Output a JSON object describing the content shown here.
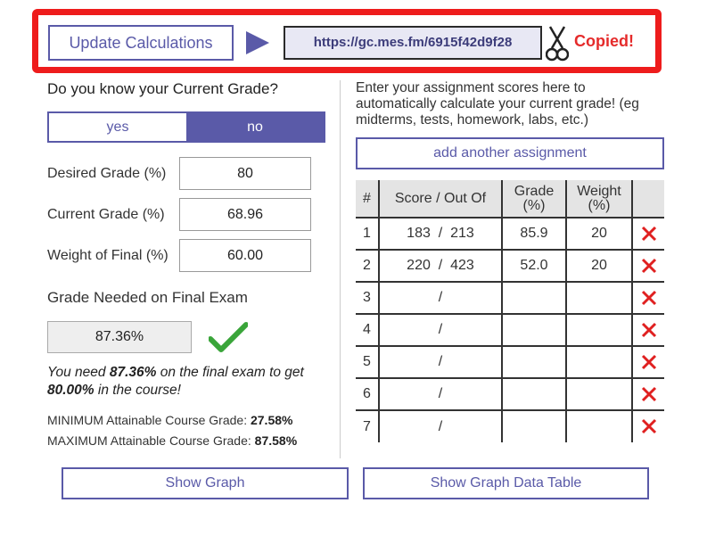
{
  "header": {
    "update_label": "Update Calculations",
    "share_url": "https://gc.mes.fm/6915f42d9f28",
    "copied_label": "Copied!"
  },
  "left": {
    "question": "Do you know your Current Grade?",
    "toggle_yes": "yes",
    "toggle_no": "no",
    "toggle_selected": "no",
    "fields": [
      {
        "label": "Desired Grade (%)",
        "value": "80"
      },
      {
        "label": "Current Grade (%)",
        "value": "68.96"
      },
      {
        "label": "Weight of Final (%)",
        "value": "60.00"
      }
    ],
    "needed_title": "Grade Needed on Final Exam",
    "needed_value": "87.36%",
    "message": {
      "p1": "You need ",
      "needed": "87.36%",
      "p2": " on the final exam to get ",
      "target": "80.00%",
      "p3": " in the course!"
    },
    "min_label": "MINIMUM Attainable Course Grade: ",
    "min_value": "27.58%",
    "max_label": "MAXIMUM Attainable Course Grade: ",
    "max_value": "87.58%"
  },
  "right": {
    "intro": "Enter your assignment scores here to automatically calculate your current grade! (eg midterms, tests, homework, labs, etc.)",
    "add_label": "add another assignment",
    "columns": [
      "#",
      "Score / Out Of",
      "Grade (%)",
      "Weight (%)"
    ],
    "rows": [
      {
        "num": "1",
        "score": "183",
        "out_of": "213",
        "grade": "85.9",
        "weight": "20"
      },
      {
        "num": "2",
        "score": "220",
        "out_of": "423",
        "grade": "52.0",
        "weight": "20"
      },
      {
        "num": "3",
        "score": "",
        "out_of": "",
        "grade": "",
        "weight": ""
      },
      {
        "num": "4",
        "score": "",
        "out_of": "",
        "grade": "",
        "weight": ""
      },
      {
        "num": "5",
        "score": "",
        "out_of": "",
        "grade": "",
        "weight": ""
      },
      {
        "num": "6",
        "score": "",
        "out_of": "",
        "grade": "",
        "weight": ""
      },
      {
        "num": "7",
        "score": "",
        "out_of": "",
        "grade": "",
        "weight": ""
      }
    ]
  },
  "bottom": {
    "show_graph": "Show Graph",
    "show_table": "Show Graph Data Table"
  },
  "colors": {
    "accent": "#5a5aa8",
    "highlight_border": "#ee1c1c",
    "copied": "#e52b2b",
    "check": "#3aa53a",
    "delete": "#e02020"
  }
}
